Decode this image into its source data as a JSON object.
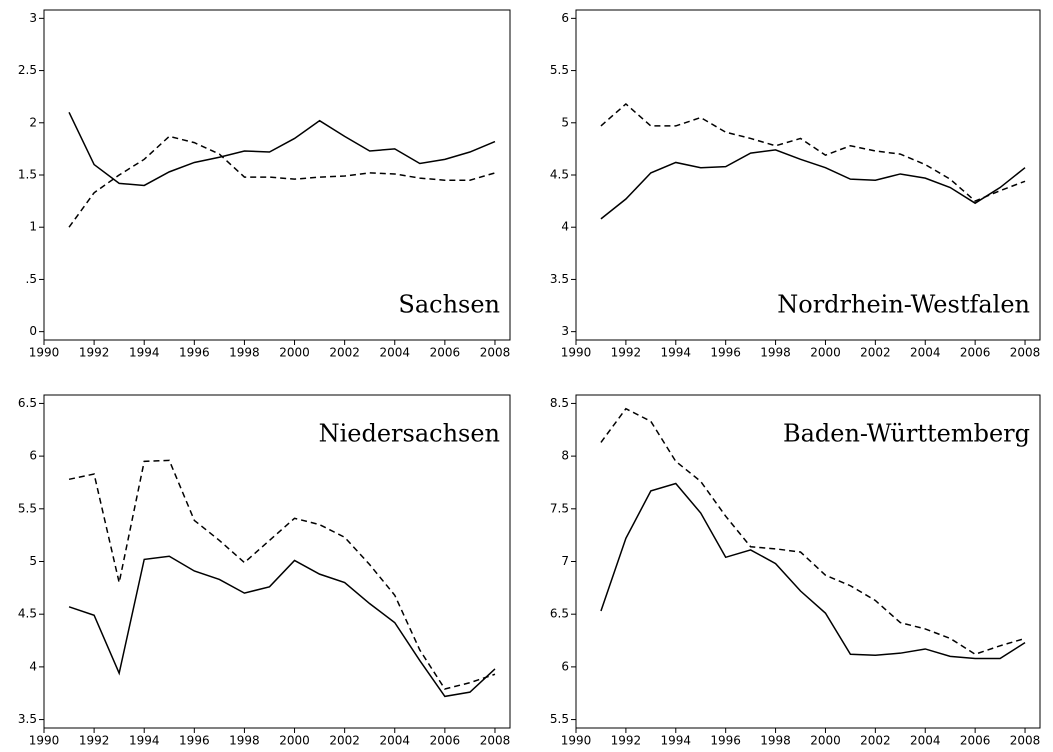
{
  "chart_data": [
    {
      "type": "line",
      "annotation": "Sachsen",
      "annotation_position": "bottom-right",
      "x": [
        1991,
        1992,
        1993,
        1994,
        1995,
        1996,
        1997,
        1998,
        1999,
        2000,
        2001,
        2002,
        2003,
        2004,
        2005,
        2006,
        2007,
        2008
      ],
      "series": [
        {
          "color": "#000000",
          "dashed": false,
          "values": [
            2.1,
            1.6,
            1.42,
            1.4,
            1.53,
            1.62,
            1.67,
            1.73,
            1.72,
            1.85,
            2.02,
            1.87,
            1.73,
            1.75,
            1.61,
            1.65,
            1.72,
            1.82
          ]
        },
        {
          "color": "#000000",
          "dashed": true,
          "values": [
            1.0,
            1.33,
            1.5,
            1.65,
            1.87,
            1.81,
            1.7,
            1.48,
            1.48,
            1.46,
            1.48,
            1.49,
            1.52,
            1.51,
            1.47,
            1.45,
            1.45,
            1.52
          ]
        }
      ],
      "xlim": [
        1990,
        2008.6
      ],
      "xticks": [
        1990,
        1992,
        1994,
        1996,
        1998,
        2000,
        2002,
        2004,
        2006,
        2008
      ],
      "ylim": [
        -0.08,
        3.08
      ],
      "yticks": [
        0,
        {
          "value": 0.5,
          "label": ".5"
        },
        1,
        1.5,
        2,
        2.5,
        3
      ]
    },
    {
      "type": "line",
      "annotation": "Nordrhein-Westfalen",
      "annotation_position": "bottom-right",
      "x": [
        1991,
        1992,
        1993,
        1994,
        1995,
        1996,
        1997,
        1998,
        1999,
        2000,
        2001,
        2002,
        2003,
        2004,
        2005,
        2006,
        2007,
        2008
      ],
      "series": [
        {
          "color": "#000000",
          "dashed": false,
          "values": [
            4.08,
            4.27,
            4.52,
            4.62,
            4.57,
            4.58,
            4.71,
            4.74,
            4.65,
            4.57,
            4.46,
            4.45,
            4.51,
            4.47,
            4.38,
            4.23,
            4.38,
            4.57
          ]
        },
        {
          "color": "#000000",
          "dashed": true,
          "values": [
            4.97,
            5.18,
            4.97,
            4.97,
            5.05,
            4.91,
            4.85,
            4.78,
            4.85,
            4.69,
            4.78,
            4.73,
            4.7,
            4.6,
            4.46,
            4.25,
            4.35,
            4.44
          ]
        }
      ],
      "xlim": [
        1990,
        2008.6
      ],
      "xticks": [
        1990,
        1992,
        1994,
        1996,
        1998,
        2000,
        2002,
        2004,
        2006,
        2008
      ],
      "ylim": [
        2.92,
        6.08
      ],
      "yticks": [
        3,
        3.5,
        4,
        4.5,
        5,
        5.5,
        6
      ]
    },
    {
      "type": "line",
      "annotation": "Niedersachsen",
      "annotation_position": "top-right",
      "x": [
        1991,
        1992,
        1993,
        1994,
        1995,
        1996,
        1997,
        1998,
        1999,
        2000,
        2001,
        2002,
        2003,
        2004,
        2005,
        2006,
        2007,
        2008
      ],
      "series": [
        {
          "color": "#000000",
          "dashed": false,
          "values": [
            4.57,
            4.49,
            3.94,
            5.02,
            5.05,
            4.91,
            4.83,
            4.7,
            4.76,
            5.01,
            4.88,
            4.8,
            4.6,
            4.42,
            4.06,
            3.72,
            3.76,
            3.98
          ]
        },
        {
          "color": "#000000",
          "dashed": true,
          "values": [
            5.78,
            5.83,
            4.8,
            5.95,
            5.96,
            5.39,
            5.2,
            4.99,
            5.2,
            5.41,
            5.35,
            5.23,
            4.97,
            4.68,
            4.16,
            3.79,
            3.85,
            3.93
          ]
        }
      ],
      "xlim": [
        1990,
        2008.6
      ],
      "xticks": [
        1990,
        1992,
        1994,
        1996,
        1998,
        2000,
        2002,
        2004,
        2006,
        2008
      ],
      "ylim": [
        3.42,
        6.58
      ],
      "yticks": [
        3.5,
        4,
        4.5,
        5,
        5.5,
        6,
        6.5
      ]
    },
    {
      "type": "line",
      "annotation": "Baden-Württemberg",
      "annotation_position": "top-right",
      "x": [
        1991,
        1992,
        1993,
        1994,
        1995,
        1996,
        1997,
        1998,
        1999,
        2000,
        2001,
        2002,
        2003,
        2004,
        2005,
        2006,
        2007,
        2008
      ],
      "series": [
        {
          "color": "#000000",
          "dashed": false,
          "values": [
            6.53,
            7.22,
            7.67,
            7.74,
            7.46,
            7.04,
            7.11,
            6.98,
            6.72,
            6.51,
            6.12,
            6.11,
            6.13,
            6.17,
            6.1,
            6.08,
            6.08,
            6.23
          ]
        },
        {
          "color": "#000000",
          "dashed": true,
          "values": [
            8.13,
            8.45,
            8.33,
            7.95,
            7.76,
            7.43,
            7.14,
            7.12,
            7.09,
            6.87,
            6.77,
            6.63,
            6.42,
            6.36,
            6.27,
            6.12,
            6.2,
            6.27
          ]
        }
      ],
      "xlim": [
        1990,
        2008.6
      ],
      "xticks": [
        1990,
        1992,
        1994,
        1996,
        1998,
        2000,
        2002,
        2004,
        2006,
        2008
      ],
      "ylim": [
        5.42,
        8.58
      ],
      "yticks": [
        5.5,
        6,
        6.5,
        7,
        7.5,
        8,
        8.5
      ]
    }
  ]
}
